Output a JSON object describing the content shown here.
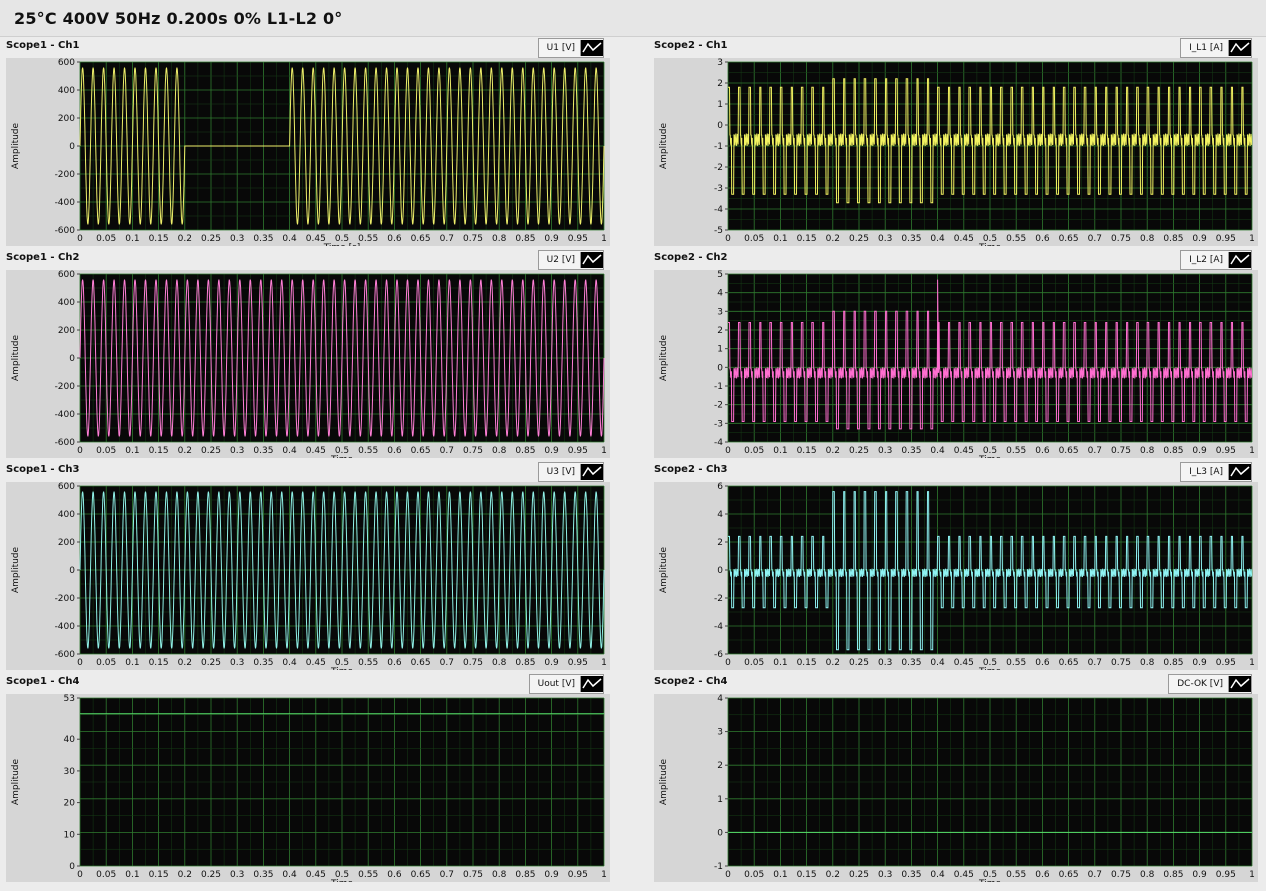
{
  "status": {
    "text": "25°C  400V  50Hz  0.200s  0%  L1-L2  0°"
  },
  "legend_colors": {
    "grid": "#1f5a1f",
    "plot_bg": "#080808"
  },
  "chart_data": [
    {
      "type": "line",
      "title": "Scope1 - Ch1",
      "legend": "U1 [V]",
      "legend_placement": "top-right",
      "xlabel": "Time [s]",
      "ylabel": "Amplitude",
      "xlim": [
        0,
        1
      ],
      "ylim": [
        -600,
        600
      ],
      "yticks": [
        -600,
        -400,
        -200,
        0,
        200,
        400,
        600
      ],
      "xticks": [
        "0",
        "0.05",
        "0.1",
        "0.15",
        "0.2",
        "0.25",
        "0.3",
        "0.35",
        "0.4",
        "0.45",
        "0.5",
        "0.55",
        "0.6",
        "0.65",
        "0.7",
        "0.75",
        "0.8",
        "0.85",
        "0.9",
        "0.95",
        "1"
      ],
      "grid": true,
      "color": "#eeee6a",
      "series": [
        {
          "values": {
            "waveform": "sine",
            "freq_hz": 50,
            "amplitude": 560,
            "offset": 0,
            "segments": [
              {
                "from": 0.2,
                "to": 0.4,
                "amplitude": 0
              }
            ]
          }
        }
      ]
    },
    {
      "type": "line",
      "title": "Scope2 - Ch1",
      "legend": "I_L1 [A]",
      "legend_placement": "top-right",
      "xlabel": "Time",
      "ylabel": "Amplitude",
      "xlim": [
        0,
        1
      ],
      "ylim": [
        -5,
        3
      ],
      "yticks": [
        -5,
        -4,
        -3,
        -2,
        -1,
        0,
        1,
        2,
        3
      ],
      "xticks": [
        "0",
        "0.05",
        "0.1",
        "0.15",
        "0.2",
        "0.25",
        "0.3",
        "0.35",
        "0.4",
        "0.45",
        "0.5",
        "0.55",
        "0.6",
        "0.65",
        "0.7",
        "0.75",
        "0.8",
        "0.85",
        "0.9",
        "0.95",
        "1"
      ],
      "grid": true,
      "color": "#f2f261",
      "series": [
        {
          "values": {
            "waveform": "pulse",
            "freq_hz": 50,
            "high": 1.8,
            "low": -3.3,
            "offset": -0.7,
            "segments": [
              {
                "from": 0.2,
                "to": 0.4,
                "high": 2.2,
                "low": -3.7
              }
            ]
          }
        }
      ]
    },
    {
      "type": "line",
      "title": "Scope1 - Ch2",
      "legend": "U2 [V]",
      "legend_placement": "top-right",
      "xlabel": "Time",
      "ylabel": "Amplitude",
      "xlim": [
        0,
        1
      ],
      "ylim": [
        -600,
        600
      ],
      "yticks": [
        -600,
        -400,
        -200,
        0,
        200,
        400,
        600
      ],
      "xticks": [
        "0",
        "0.05",
        "0.1",
        "0.15",
        "0.2",
        "0.25",
        "0.3",
        "0.35",
        "0.4",
        "0.45",
        "0.5",
        "0.55",
        "0.6",
        "0.65",
        "0.7",
        "0.75",
        "0.8",
        "0.85",
        "0.9",
        "0.95",
        "1"
      ],
      "grid": true,
      "color": "#ff7fd6",
      "series": [
        {
          "values": {
            "waveform": "sine",
            "freq_hz": 50,
            "amplitude": 560,
            "offset": 0,
            "segments": []
          }
        }
      ]
    },
    {
      "type": "line",
      "title": "Scope2 - Ch2",
      "legend": "I_L2 [A]",
      "legend_placement": "top-right",
      "xlabel": "Time",
      "ylabel": "Amplitude",
      "xlim": [
        0,
        1
      ],
      "ylim": [
        -4,
        5
      ],
      "yticks": [
        -4,
        -3,
        -2,
        -1,
        0,
        1,
        2,
        3,
        4,
        5
      ],
      "xticks": [
        "0",
        "0.05",
        "0.1",
        "0.15",
        "0.2",
        "0.25",
        "0.3",
        "0.35",
        "0.4",
        "0.45",
        "0.5",
        "0.55",
        "0.6",
        "0.65",
        "0.7",
        "0.75",
        "0.8",
        "0.85",
        "0.9",
        "0.95",
        "1"
      ],
      "grid": true,
      "color": "#ff6fd0",
      "series": [
        {
          "values": {
            "waveform": "pulse",
            "freq_hz": 50,
            "high": 2.4,
            "low": -2.9,
            "offset": -0.3,
            "segments": [
              {
                "from": 0.2,
                "to": 0.4,
                "high": 3.0,
                "low": -3.3
              }
            ],
            "spike": {
              "x": 0.4,
              "y": 4.7
            }
          }
        }
      ]
    },
    {
      "type": "line",
      "title": "Scope1 - Ch3",
      "legend": "U3 [V]",
      "legend_placement": "top-right",
      "xlabel": "Time",
      "ylabel": "Amplitude",
      "xlim": [
        0,
        1
      ],
      "ylim": [
        -600,
        600
      ],
      "yticks": [
        -600,
        -400,
        -200,
        0,
        200,
        400,
        600
      ],
      "xticks": [
        "0",
        "0.05",
        "0.1",
        "0.15",
        "0.2",
        "0.25",
        "0.3",
        "0.35",
        "0.4",
        "0.45",
        "0.5",
        "0.55",
        "0.6",
        "0.65",
        "0.7",
        "0.75",
        "0.8",
        "0.85",
        "0.9",
        "0.95",
        "1"
      ],
      "grid": true,
      "color": "#8ff0e6",
      "series": [
        {
          "values": {
            "waveform": "sine",
            "freq_hz": 50,
            "amplitude": 560,
            "offset": 0,
            "segments": []
          }
        }
      ]
    },
    {
      "type": "line",
      "title": "Scope2 - Ch3",
      "legend": "I_L3 [A]",
      "legend_placement": "top-right",
      "xlabel": "Time",
      "ylabel": "Amplitude",
      "xlim": [
        0,
        1
      ],
      "ylim": [
        -6,
        6
      ],
      "yticks": [
        -6,
        -4,
        -2,
        0,
        2,
        4,
        6
      ],
      "xticks": [
        "0",
        "0.05",
        "0.1",
        "0.15",
        "0.2",
        "0.25",
        "0.3",
        "0.35",
        "0.4",
        "0.45",
        "0.5",
        "0.55",
        "0.6",
        "0.65",
        "0.7",
        "0.75",
        "0.8",
        "0.85",
        "0.9",
        "0.95",
        "1"
      ],
      "grid": true,
      "color": "#8ff3f3",
      "series": [
        {
          "values": {
            "waveform": "pulse",
            "freq_hz": 50,
            "high": 2.4,
            "low": -2.7,
            "offset": -0.2,
            "segments": [
              {
                "from": 0.2,
                "to": 0.4,
                "high": 5.6,
                "low": -5.7
              }
            ]
          }
        }
      ]
    },
    {
      "type": "line",
      "title": "Scope1 - Ch4",
      "legend": "Uout [V]",
      "legend_placement": "top-right",
      "xlabel": "Time",
      "ylabel": "Amplitude",
      "xlim": [
        0,
        1
      ],
      "ylim": [
        0,
        53
      ],
      "yticks": [
        0,
        10,
        20,
        30,
        40,
        53
      ],
      "xticks": [
        "0",
        "0.05",
        "0.1",
        "0.15",
        "0.2",
        "0.25",
        "0.3",
        "0.35",
        "0.4",
        "0.45",
        "0.5",
        "0.55",
        "0.6",
        "0.65",
        "0.7",
        "0.75",
        "0.8",
        "0.85",
        "0.9",
        "0.95",
        "1"
      ],
      "grid": true,
      "color": "#57e06a",
      "series": [
        {
          "values": {
            "waveform": "flat",
            "level": 48
          }
        }
      ]
    },
    {
      "type": "line",
      "title": "Scope2 - Ch4",
      "legend": "DC-OK [V]",
      "legend_placement": "top-right",
      "xlabel": "Time",
      "ylabel": "Amplitude",
      "xlim": [
        0,
        1
      ],
      "ylim": [
        -1,
        4
      ],
      "yticks": [
        -1,
        0,
        1,
        2,
        3,
        4
      ],
      "xticks": [
        "0",
        "0.05",
        "0.1",
        "0.15",
        "0.2",
        "0.25",
        "0.3",
        "0.35",
        "0.4",
        "0.45",
        "0.5",
        "0.55",
        "0.6",
        "0.65",
        "0.7",
        "0.75",
        "0.8",
        "0.85",
        "0.9",
        "0.95",
        "1"
      ],
      "grid": true,
      "color": "#57e06a",
      "series": [
        {
          "values": {
            "waveform": "flat",
            "level": 0
          }
        }
      ]
    }
  ]
}
